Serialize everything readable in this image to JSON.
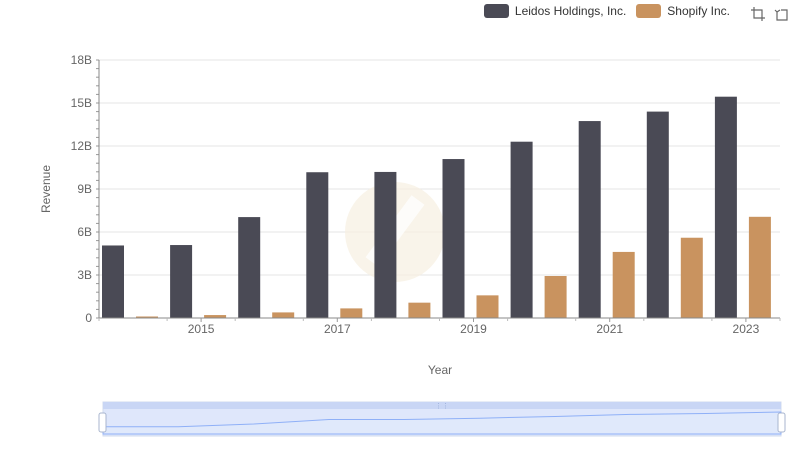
{
  "legend": {
    "items": [
      {
        "name": "Leidos Holdings, Inc.",
        "color": "#4a4a55"
      },
      {
        "name": "Shopify Inc.",
        "color": "#c9935f"
      }
    ]
  },
  "toolbox": {
    "icons": [
      "zoom-icon",
      "restore-icon"
    ]
  },
  "chart_data": {
    "type": "bar",
    "categories": [
      "2014",
      "2015",
      "2016",
      "2017",
      "2018",
      "2019",
      "2020",
      "2021",
      "2022",
      "2023"
    ],
    "x_tick_labels": [
      "2015",
      "2017",
      "2019",
      "2021",
      "2023"
    ],
    "series": [
      {
        "name": "Leidos Holdings, Inc.",
        "color": "#4a4a55",
        "values": [
          5.06,
          5.09,
          7.04,
          10.17,
          10.19,
          11.09,
          12.3,
          13.74,
          14.4,
          15.44
        ]
      },
      {
        "name": "Shopify Inc.",
        "color": "#c9935f",
        "values": [
          0.105,
          0.205,
          0.39,
          0.67,
          1.07,
          1.58,
          2.93,
          4.61,
          5.6,
          7.06
        ]
      }
    ],
    "ylabel": "Revenue",
    "xlabel": "Year",
    "y_ticks": [
      "0",
      "3B",
      "6B",
      "9B",
      "12B",
      "15B",
      "18B"
    ],
    "ylim": [
      0,
      18
    ],
    "grid": true,
    "legend_position": "top-right"
  }
}
